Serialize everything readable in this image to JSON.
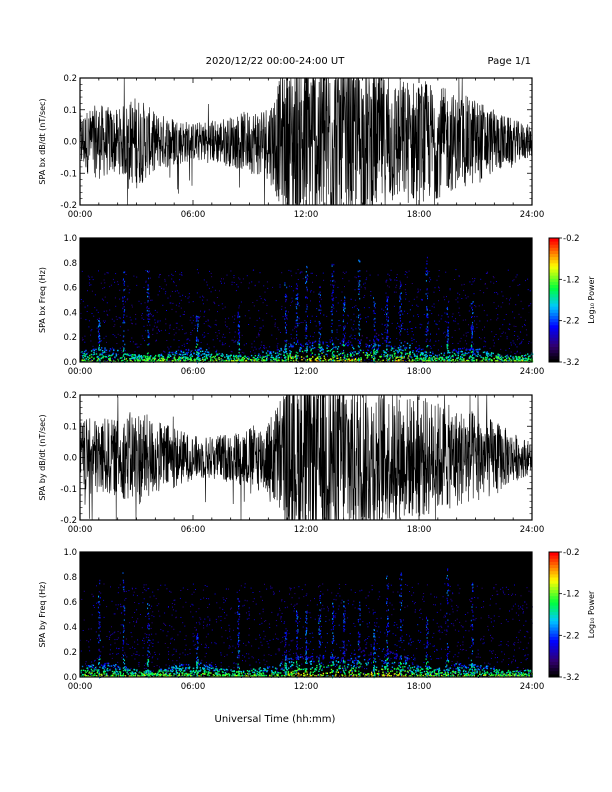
{
  "header": {
    "title": "2020/12/22  00:00-24:00 UT",
    "page": "Page 1/1"
  },
  "xlabel": "Universal Time (hh:mm)",
  "chart_data": [
    {
      "type": "line",
      "ylabel": "SPA bx dB/dt (nT/sec)",
      "xlim": [
        0,
        24
      ],
      "ylim": [
        -0.2,
        0.2
      ],
      "x_ticks": [
        "00:00",
        "06:00",
        "12:00",
        "18:00",
        "24:00"
      ],
      "y_ticks": [
        "-0.2",
        "-0.1",
        "0.0",
        "0.1",
        "0.2"
      ],
      "amplitude_profile": {
        "hours": [
          0,
          1,
          2,
          3,
          4,
          5,
          6,
          7,
          8,
          9,
          10,
          11,
          12,
          13,
          14,
          15,
          16,
          17,
          18,
          19,
          20,
          21,
          22,
          23,
          24
        ],
        "amplitude": [
          0.09,
          0.12,
          0.1,
          0.15,
          0.09,
          0.08,
          0.06,
          0.07,
          0.08,
          0.1,
          0.12,
          0.25,
          0.3,
          0.3,
          0.28,
          0.25,
          0.22,
          0.2,
          0.2,
          0.18,
          0.15,
          0.14,
          0.1,
          0.07,
          0.05
        ]
      }
    },
    {
      "type": "heatmap",
      "ylabel": "SPA bx Freq (Hz)",
      "xlim": [
        0,
        24
      ],
      "ylim": [
        0,
        1.0
      ],
      "x_ticks": [
        "00:00",
        "06:00",
        "12:00",
        "18:00",
        "24:00"
      ],
      "y_ticks": [
        "0.0",
        "0.2",
        "0.4",
        "0.6",
        "0.8",
        "1.0"
      ],
      "colorbar": {
        "label": "Log₁₀ Power",
        "range": [
          -3.2,
          -0.2
        ],
        "ticks": [
          "-0.2",
          "-1.2",
          "-2.2",
          "-3.2"
        ]
      }
    },
    {
      "type": "line",
      "ylabel": "SPA by dB/dt (nT/sec)",
      "xlim": [
        0,
        24
      ],
      "ylim": [
        -0.2,
        0.2
      ],
      "x_ticks": [
        "00:00",
        "06:00",
        "12:00",
        "18:00",
        "24:00"
      ],
      "y_ticks": [
        "-0.2",
        "-0.1",
        "0.0",
        "0.1",
        "0.2"
      ],
      "amplitude_profile": {
        "hours": [
          0,
          1,
          2,
          3,
          4,
          5,
          6,
          7,
          8,
          9,
          10,
          11,
          12,
          13,
          14,
          15,
          16,
          17,
          18,
          19,
          20,
          21,
          22,
          23,
          24
        ],
        "amplitude": [
          0.12,
          0.13,
          0.12,
          0.16,
          0.12,
          0.1,
          0.07,
          0.07,
          0.08,
          0.1,
          0.12,
          0.25,
          0.3,
          0.3,
          0.28,
          0.25,
          0.22,
          0.2,
          0.2,
          0.18,
          0.16,
          0.15,
          0.12,
          0.08,
          0.05
        ]
      }
    },
    {
      "type": "heatmap",
      "ylabel": "SPA by Freq (Hz)",
      "xlim": [
        0,
        24
      ],
      "ylim": [
        0,
        1.0
      ],
      "x_ticks": [
        "00:00",
        "06:00",
        "12:00",
        "18:00",
        "24:00"
      ],
      "y_ticks": [
        "0.0",
        "0.2",
        "0.4",
        "0.6",
        "0.8",
        "1.0"
      ],
      "colorbar": {
        "label": "Log₁₀ Power",
        "range": [
          -3.2,
          -0.2
        ],
        "ticks": [
          "-0.2",
          "-1.2",
          "-2.2",
          "-3.2"
        ]
      }
    }
  ]
}
